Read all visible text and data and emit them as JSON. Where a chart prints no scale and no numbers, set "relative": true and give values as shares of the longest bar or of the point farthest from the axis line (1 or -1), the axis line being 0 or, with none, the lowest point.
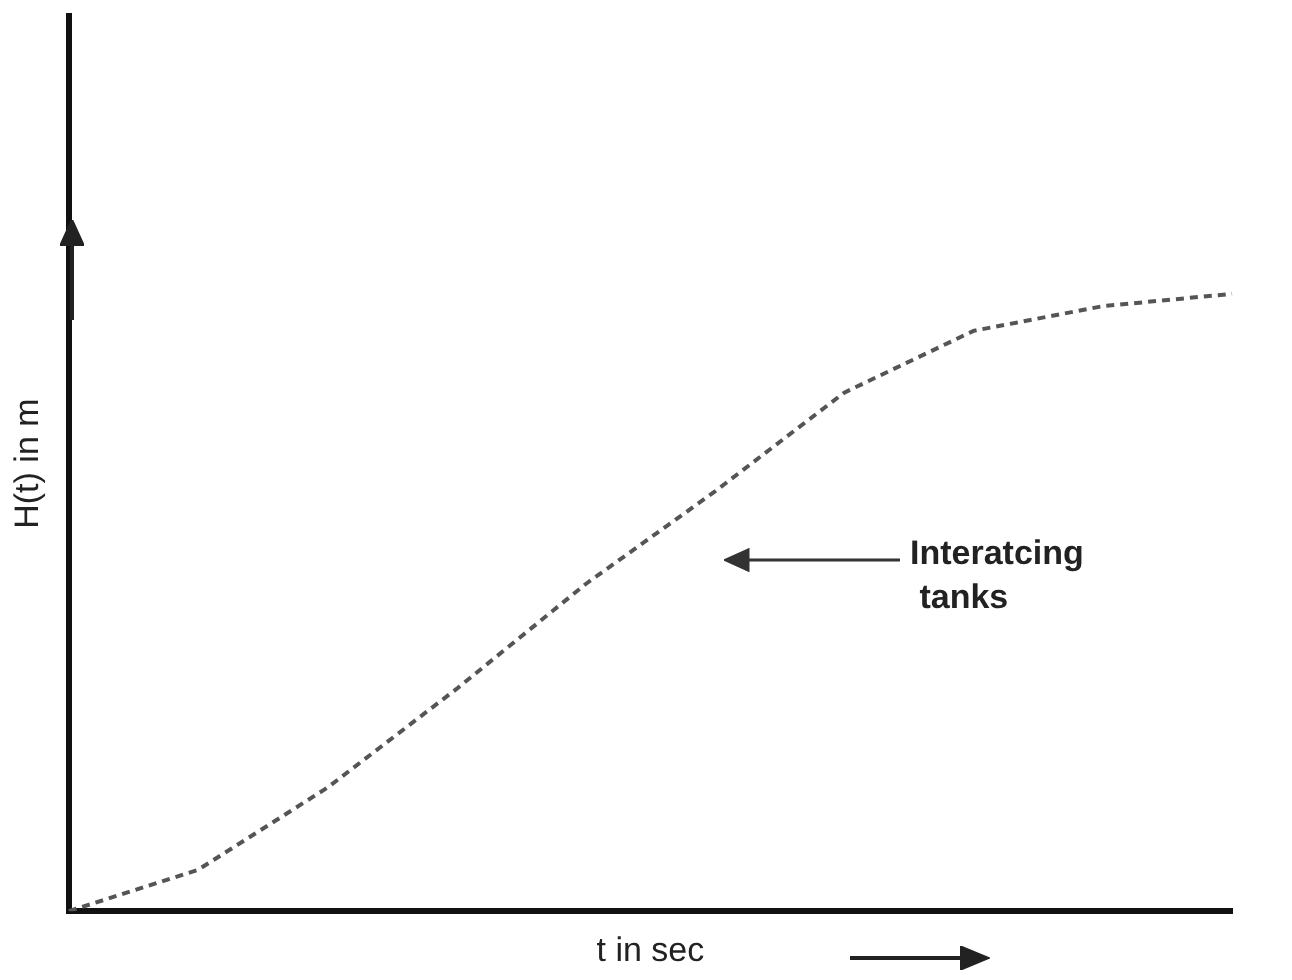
{
  "chart_data": {
    "type": "line",
    "relative": true,
    "xlabel": "t in sec",
    "ylabel": "H(t) in m",
    "categories": [
      null,
      null,
      null,
      null,
      null,
      null,
      null,
      null,
      null,
      null
    ],
    "series": [
      {
        "color": "#555555",
        "values": [
          0,
          0.067,
          0.2,
          0.36,
          0.53,
          0.68,
          0.84,
          0.94,
          0.98,
          1
        ]
      }
    ],
    "annotations": [
      "Interatcing\n tanks"
    ],
    "line_style": "dashed",
    "marker": "none",
    "grid": false,
    "legend": false
  }
}
